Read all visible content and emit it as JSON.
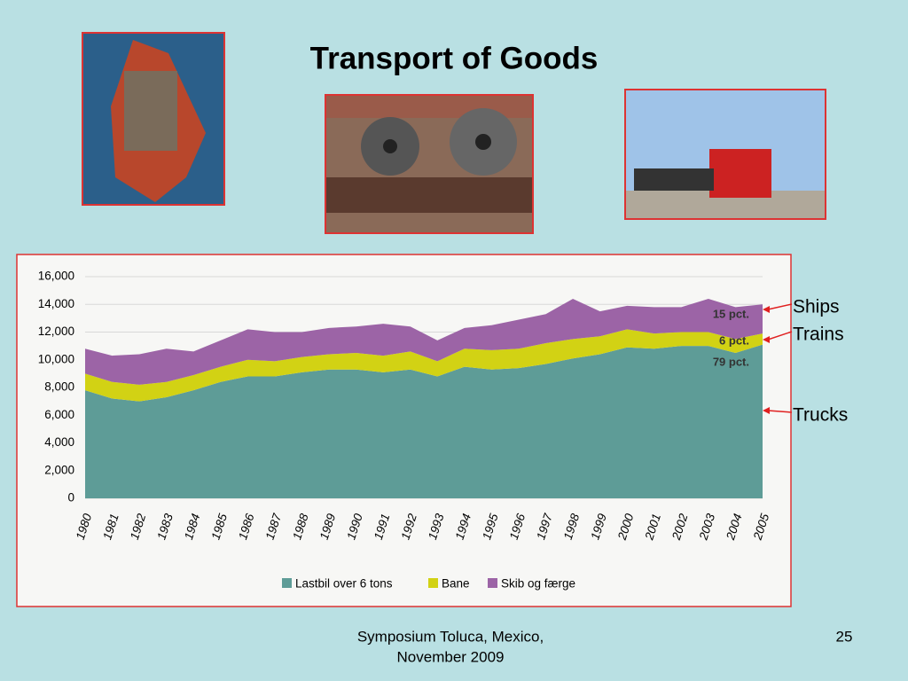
{
  "slide": {
    "title": "Transport of Goods",
    "arrow_labels": [
      "Ships",
      "Trains",
      "Trucks"
    ],
    "footer": [
      "Symposium  Toluca, Mexico,",
      "November 2009"
    ],
    "page_number": "25"
  },
  "chart_data": {
    "type": "stacked-area",
    "categories": [
      "1980",
      "1981",
      "1982",
      "1983",
      "1984",
      "1985",
      "1986",
      "1987",
      "1988",
      "1989",
      "1990",
      "1991",
      "1992",
      "1993",
      "1994",
      "1995",
      "1996",
      "1997",
      "1998",
      "1999",
      "2000",
      "2001",
      "2002",
      "2003",
      "2004",
      "2005"
    ],
    "series": [
      {
        "name": "Lastbil over 6 tons",
        "color": "#5e9c97",
        "values": [
          7800,
          7200,
          7000,
          7300,
          7800,
          8400,
          8800,
          8800,
          9100,
          9300,
          9300,
          9100,
          9300,
          8800,
          9500,
          9300,
          9400,
          9700,
          10100,
          10400,
          10900,
          10800,
          11000,
          11000,
          10500,
          11100
        ]
      },
      {
        "name": "Bane",
        "color": "#d2d214",
        "values": [
          1200,
          1200,
          1200,
          1100,
          1100,
          1100,
          1200,
          1100,
          1100,
          1100,
          1200,
          1200,
          1300,
          1100,
          1300,
          1400,
          1400,
          1500,
          1400,
          1300,
          1300,
          1100,
          1000,
          1000,
          1000,
          800
        ]
      },
      {
        "name": "Skib og færge",
        "color": "#9c64a6",
        "values": [
          1800,
          1900,
          2200,
          2400,
          1700,
          1900,
          2200,
          2100,
          1800,
          1900,
          1900,
          2300,
          1800,
          1500,
          1500,
          1800,
          2100,
          2100,
          2900,
          1800,
          1700,
          1900,
          1800,
          2400,
          2300,
          2100
        ]
      }
    ],
    "annotations": [
      "15 pct.",
      "6 pct.",
      "79 pct."
    ],
    "ylim": [
      0,
      16000
    ],
    "yticks": [
      0,
      {
        "value": 2000,
        "label": "2,000"
      },
      {
        "value": 4000,
        "label": "4,000"
      },
      {
        "value": 6000,
        "label": "6,000"
      },
      {
        "value": 8000,
        "label": "8,000"
      },
      {
        "value": 10000,
        "label": "10,000"
      },
      {
        "value": 12000,
        "label": "12,000"
      },
      {
        "value": 14000,
        "label": "14,000"
      },
      {
        "value": 16000,
        "label": "16,000"
      }
    ],
    "grid": true,
    "legend": "bottom"
  }
}
